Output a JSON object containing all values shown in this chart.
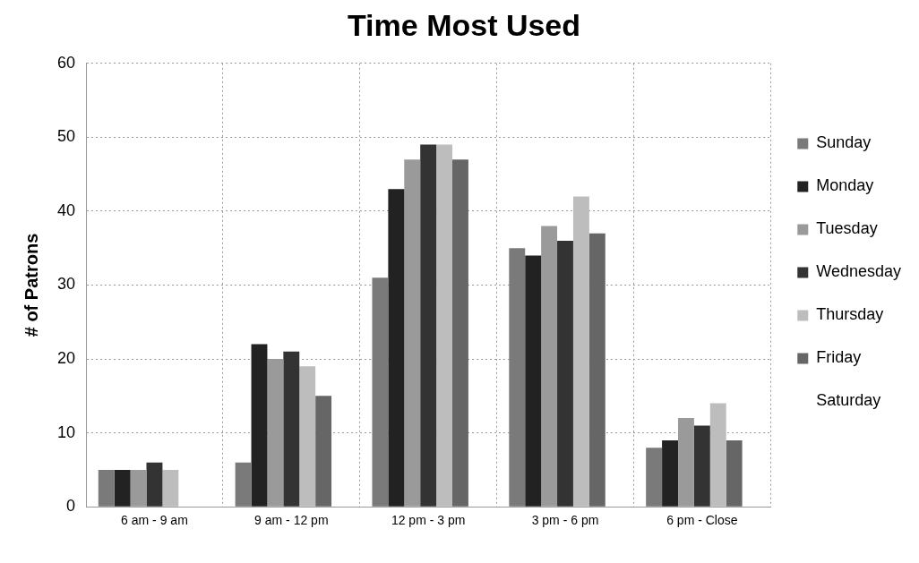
{
  "chart_data": {
    "type": "bar",
    "title": "Time Most Used",
    "ylabel": "# of Patrons",
    "categories": [
      "6 am - 9 am",
      "9 am - 12 pm",
      "12 pm - 3 pm",
      "3 pm - 6 pm",
      "6 pm - Close"
    ],
    "series": [
      {
        "name": "Sunday",
        "color": "#7a7a7a",
        "values": [
          5,
          6,
          31,
          35,
          8
        ]
      },
      {
        "name": "Monday",
        "color": "#222222",
        "values": [
          5,
          22,
          43,
          34,
          9
        ]
      },
      {
        "name": "Tuesday",
        "color": "#9a9a9a",
        "values": [
          5,
          20,
          47,
          38,
          12
        ]
      },
      {
        "name": "Wednesday",
        "color": "#333333",
        "values": [
          6,
          21,
          49,
          36,
          11
        ]
      },
      {
        "name": "Thursday",
        "color": "#bdbdbd",
        "values": [
          5,
          19,
          49,
          42,
          14
        ]
      },
      {
        "name": "Friday",
        "color": "#666666",
        "values": [
          0,
          15,
          47,
          37,
          9
        ]
      },
      {
        "name": "Saturday",
        "values": [
          0,
          0,
          0,
          0,
          0
        ]
      }
    ],
    "ylim": [
      0,
      60
    ],
    "yticks": [
      0,
      10,
      20,
      30,
      40,
      50,
      60
    ],
    "grid": true,
    "legend": "right"
  }
}
